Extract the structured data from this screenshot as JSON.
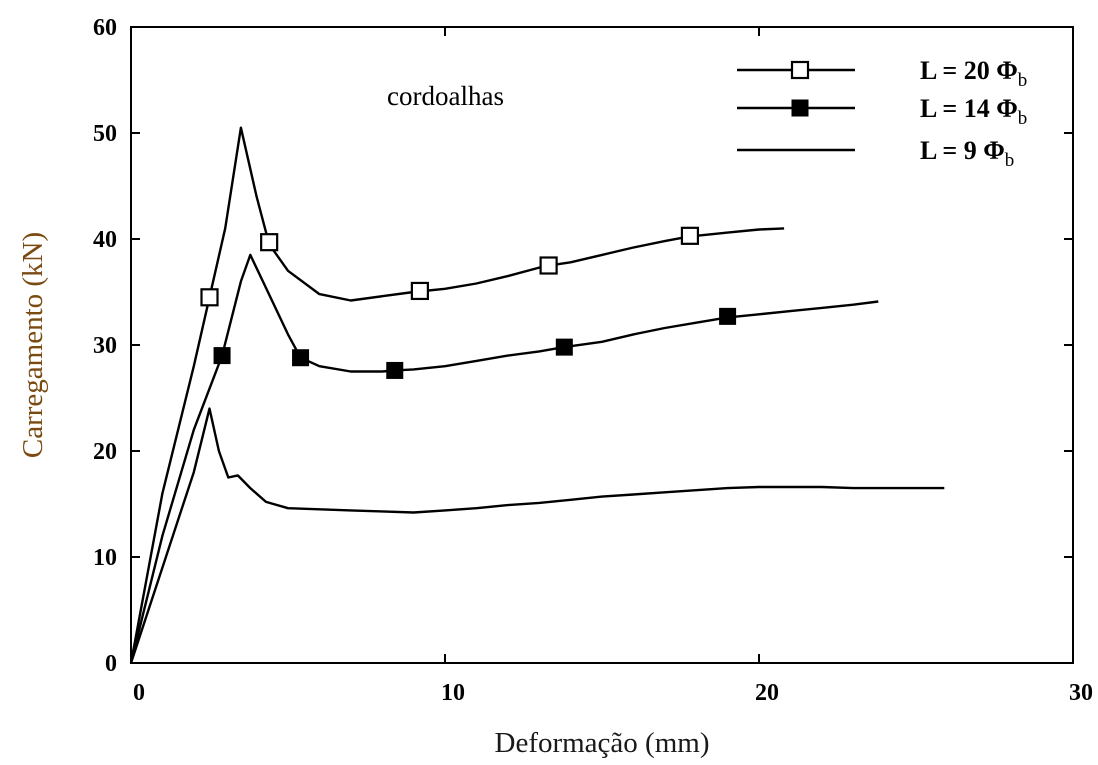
{
  "chart_data": {
    "type": "line",
    "title": "",
    "xlabel": "Deformação (mm)",
    "ylabel": "Carregamento (kN)",
    "xlim": [
      0,
      30
    ],
    "ylim": [
      0,
      60
    ],
    "xticks": [
      0,
      10,
      20,
      30
    ],
    "yticks": [
      0,
      10,
      20,
      30,
      40,
      50,
      60
    ],
    "grid": false,
    "legend_position": "top-right",
    "annotation": "cordoalhas",
    "colors": {
      "xlabel": "#1a1a1a",
      "ylabel": "#7a4a10",
      "line": "#000000"
    },
    "series": [
      {
        "name": "L = 20 Φb",
        "legend_main": "L = 20 Φ",
        "legend_sub": "b",
        "marker": "open-square",
        "points": [
          [
            0,
            0
          ],
          [
            1,
            16
          ],
          [
            2,
            28
          ],
          [
            2.5,
            34.5
          ],
          [
            3,
            41
          ],
          [
            3.5,
            50.5
          ],
          [
            4,
            44
          ],
          [
            4.4,
            39.5
          ],
          [
            5,
            37
          ],
          [
            6,
            34.8
          ],
          [
            7,
            34.2
          ],
          [
            8,
            34.6
          ],
          [
            9,
            35
          ],
          [
            10,
            35.3
          ],
          [
            11,
            35.8
          ],
          [
            12,
            36.5
          ],
          [
            13,
            37.3
          ],
          [
            13.3,
            37.5
          ],
          [
            14,
            37.8
          ],
          [
            15,
            38.5
          ],
          [
            16,
            39.2
          ],
          [
            17,
            39.8
          ],
          [
            17.7,
            40.2
          ],
          [
            18,
            40.3
          ],
          [
            19,
            40.6
          ],
          [
            20,
            40.9
          ],
          [
            20.8,
            41
          ]
        ],
        "marker_points": [
          [
            2.5,
            34.5
          ],
          [
            4.4,
            39.7
          ],
          [
            9.2,
            35.1
          ],
          [
            13.3,
            37.5
          ],
          [
            17.8,
            40.3
          ]
        ]
      },
      {
        "name": "L = 14 Φb",
        "legend_main": "L = 14 Φ",
        "legend_sub": "b",
        "marker": "filled-square",
        "points": [
          [
            0,
            0
          ],
          [
            1,
            12
          ],
          [
            2,
            22
          ],
          [
            2.9,
            29
          ],
          [
            3.5,
            36
          ],
          [
            3.8,
            38.5
          ],
          [
            4.2,
            36
          ],
          [
            5,
            31
          ],
          [
            5.4,
            28.8
          ],
          [
            6,
            28
          ],
          [
            7,
            27.5
          ],
          [
            8,
            27.5
          ],
          [
            8.4,
            27.6
          ],
          [
            9,
            27.7
          ],
          [
            10,
            28
          ],
          [
            11,
            28.5
          ],
          [
            12,
            29
          ],
          [
            13,
            29.4
          ],
          [
            13.8,
            29.8
          ],
          [
            15,
            30.3
          ],
          [
            16,
            31
          ],
          [
            17,
            31.6
          ],
          [
            18,
            32.1
          ],
          [
            19,
            32.6
          ],
          [
            20,
            32.9
          ],
          [
            21,
            33.2
          ],
          [
            22,
            33.5
          ],
          [
            23,
            33.8
          ],
          [
            23.8,
            34.1
          ]
        ],
        "marker_points": [
          [
            2.9,
            29
          ],
          [
            5.4,
            28.8
          ],
          [
            8.4,
            27.6
          ],
          [
            13.8,
            29.8
          ],
          [
            19,
            32.7
          ]
        ]
      },
      {
        "name": "L = 9 Φb",
        "legend_main": "L =   9 Φ",
        "legend_sub": "b",
        "marker": "none",
        "points": [
          [
            0,
            0
          ],
          [
            1,
            9
          ],
          [
            2,
            18
          ],
          [
            2.5,
            24
          ],
          [
            2.8,
            20
          ],
          [
            3.1,
            17.5
          ],
          [
            3.4,
            17.7
          ],
          [
            3.8,
            16.5
          ],
          [
            4.3,
            15.2
          ],
          [
            5,
            14.6
          ],
          [
            6,
            14.5
          ],
          [
            7,
            14.4
          ],
          [
            8,
            14.3
          ],
          [
            9,
            14.2
          ],
          [
            10,
            14.4
          ],
          [
            11,
            14.6
          ],
          [
            12,
            14.9
          ],
          [
            13,
            15.1
          ],
          [
            14,
            15.4
          ],
          [
            15,
            15.7
          ],
          [
            16,
            15.9
          ],
          [
            17,
            16.1
          ],
          [
            18,
            16.3
          ],
          [
            19,
            16.5
          ],
          [
            20,
            16.6
          ],
          [
            21,
            16.6
          ],
          [
            22,
            16.6
          ],
          [
            23,
            16.5
          ],
          [
            24,
            16.5
          ],
          [
            25,
            16.5
          ],
          [
            25.9,
            16.5
          ]
        ],
        "marker_points": []
      }
    ]
  }
}
